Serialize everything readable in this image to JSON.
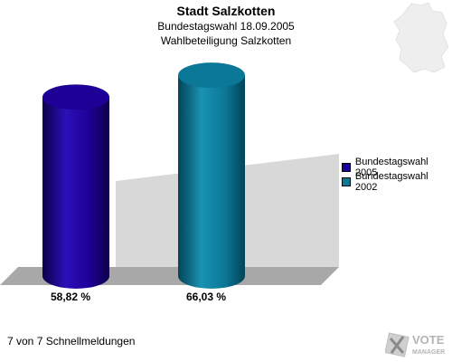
{
  "header": {
    "title": "Stadt Salzkotten",
    "subtitle": "Bundestagswahl 18.09.2005",
    "subtitle2": "Wahlbeteiligung Salzkotten"
  },
  "chart_data": {
    "type": "bar",
    "categories": [
      "Bundestagswahl 2005",
      "Bundestagswahl 2002"
    ],
    "values": [
      58.82,
      66.03
    ],
    "value_labels": [
      "58,82 %",
      "66,03 %"
    ],
    "colors": [
      "#1e0096",
      "#0a7896"
    ],
    "ylim": [
      0,
      100
    ],
    "legend_position": "right",
    "grid": false
  },
  "legend": {
    "items": [
      {
        "label": "Bundestagswahl 2005",
        "color": "#1e0096"
      },
      {
        "label": "Bundestagswahl 2002",
        "color": "#0a7896"
      }
    ]
  },
  "footer": {
    "text": "7 von 7 Schnellmeldungen"
  },
  "logo": {
    "line1": "VOTE",
    "line2": "MANAGER"
  }
}
